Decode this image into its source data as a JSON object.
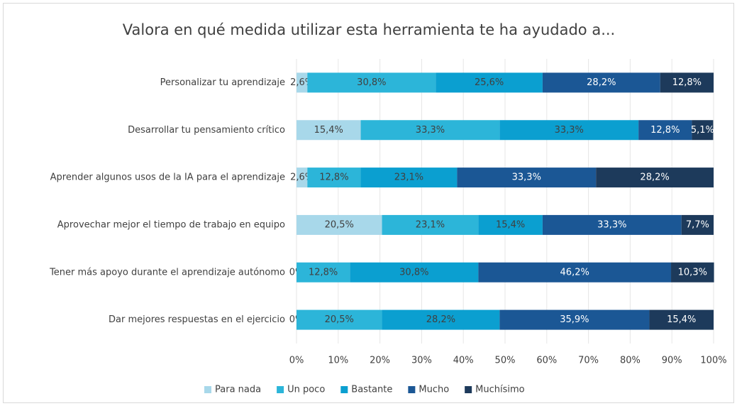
{
  "chart_data": {
    "type": "stacked_barh",
    "title": "Valora en qué medida utilizar esta herramienta te ha ayudado a...",
    "categories": [
      "Personalizar tu aprendizaje",
      "Desarrollar tu pensamiento crítico",
      "Aprender algunos usos de la IA para el aprendizaje",
      "Aprovechar mejor el tiempo de trabajo en equipo",
      "Tener más apoyo durante el aprendizaje autónomo",
      "Dar mejores respuestas en el ejercicio"
    ],
    "series": [
      {
        "name": "Para nada",
        "color": "#a8d8ea",
        "values": [
          2.6,
          15.4,
          2.6,
          20.5,
          0,
          0
        ],
        "value_labels": [
          "2,6%",
          "15,4%",
          "2,6%",
          "20,5%",
          "0%",
          "0%"
        ]
      },
      {
        "name": "Un poco",
        "color": "#2cb5d9",
        "values": [
          30.8,
          33.3,
          12.8,
          23.1,
          12.8,
          20.5
        ],
        "value_labels": [
          "30,8%",
          "33,3%",
          "12,8%",
          "23,1%",
          "12,8%",
          "20,5%"
        ]
      },
      {
        "name": "Bastante",
        "color": "#0b9fd0",
        "values": [
          25.6,
          33.3,
          23.1,
          15.4,
          30.8,
          28.2
        ],
        "value_labels": [
          "25,6%",
          "33,3%",
          "23,1%",
          "15,4%",
          "30,8%",
          "28,2%"
        ]
      },
      {
        "name": "Mucho",
        "color": "#1b5795",
        "values": [
          28.2,
          12.8,
          33.3,
          33.3,
          46.2,
          35.9
        ],
        "value_labels": [
          "28,2%",
          "12,8%",
          "33,3%",
          "33,3%",
          "46,2%",
          "35,9%"
        ]
      },
      {
        "name": "Muchísimo",
        "color": "#1d3a5b",
        "values": [
          12.8,
          5.1,
          28.2,
          7.7,
          10.3,
          15.4
        ],
        "value_labels": [
          "12,8%",
          "5,1%",
          "28,2%",
          "7,7%",
          "10,3%",
          "15,4%"
        ]
      }
    ],
    "xlim": [
      0,
      100
    ],
    "xticks": [
      {
        "value": 0,
        "label": "0%"
      },
      {
        "value": 10,
        "label": "10%"
      },
      {
        "value": 20,
        "label": "20%"
      },
      {
        "value": 30,
        "label": "30%"
      },
      {
        "value": 40,
        "label": "40%"
      },
      {
        "value": 50,
        "label": "50%"
      },
      {
        "value": 60,
        "label": "60%"
      },
      {
        "value": 70,
        "label": "70%"
      },
      {
        "value": 80,
        "label": "80%"
      },
      {
        "value": 90,
        "label": "90%"
      },
      {
        "value": 100,
        "label": "100%"
      }
    ],
    "grid": true,
    "legend": "bottom"
  }
}
